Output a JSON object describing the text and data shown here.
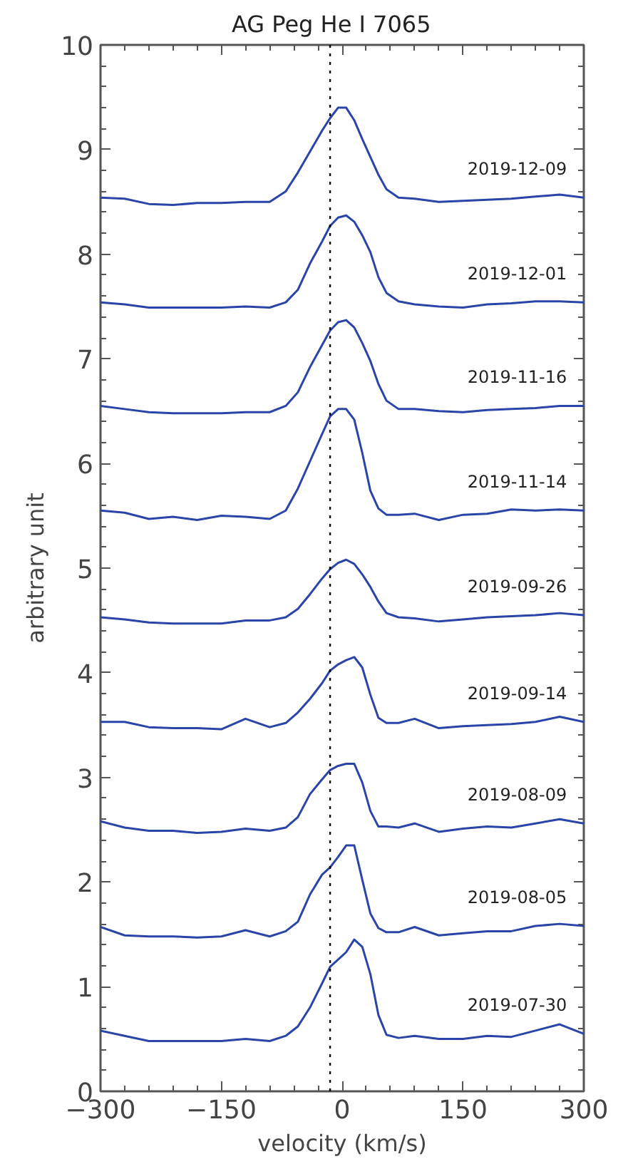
{
  "chart_data": {
    "type": "line",
    "title": "AG Peg    He I 7065",
    "xlabel": "velocity (km/s)",
    "ylabel": "arbitrary unit",
    "x": [
      -300,
      -270,
      -240,
      -210,
      -180,
      -150,
      -120,
      -90,
      -70,
      -55,
      -40,
      -25,
      -15,
      -5,
      5,
      15,
      25,
      35,
      45,
      55,
      70,
      90,
      120,
      150,
      180,
      210,
      240,
      270,
      300
    ],
    "xlim": [
      -300,
      300
    ],
    "xticks": [
      -300,
      -150,
      0,
      150,
      300
    ],
    "ylim": [
      0,
      10
    ],
    "yticks": [
      0,
      1,
      2,
      3,
      4,
      5,
      6,
      7,
      8,
      9,
      10
    ],
    "grid": false,
    "marker": "none",
    "line_style": "solid",
    "ref_lines": [
      {
        "axis": "x",
        "value": -15,
        "label": null,
        "color": "#000000",
        "line_style": "dotted"
      }
    ],
    "series": [
      {
        "name": "2019-12-09",
        "color": "#2a44a8",
        "values": [
          8.54,
          8.53,
          8.48,
          8.47,
          8.49,
          8.49,
          8.5,
          8.5,
          8.6,
          8.78,
          8.98,
          9.18,
          9.3,
          9.4,
          9.4,
          9.28,
          9.1,
          8.93,
          8.76,
          8.62,
          8.54,
          8.53,
          8.5,
          8.51,
          8.52,
          8.53,
          8.55,
          8.57,
          8.54
        ]
      },
      {
        "name": "2019-12-01",
        "color": "#2a44a8",
        "values": [
          7.54,
          7.52,
          7.49,
          7.49,
          7.49,
          7.49,
          7.5,
          7.49,
          7.54,
          7.66,
          7.91,
          8.12,
          8.27,
          8.35,
          8.37,
          8.31,
          8.18,
          8.02,
          7.78,
          7.63,
          7.55,
          7.52,
          7.5,
          7.49,
          7.52,
          7.53,
          7.55,
          7.55,
          7.54
        ]
      },
      {
        "name": "2019-11-16",
        "color": "#2a44a8",
        "values": [
          6.55,
          6.52,
          6.49,
          6.48,
          6.48,
          6.48,
          6.49,
          6.49,
          6.55,
          6.68,
          6.92,
          7.13,
          7.27,
          7.35,
          7.37,
          7.3,
          7.15,
          6.98,
          6.76,
          6.6,
          6.52,
          6.52,
          6.5,
          6.49,
          6.51,
          6.52,
          6.53,
          6.55,
          6.55
        ]
      },
      {
        "name": "2019-11-14",
        "color": "#2a44a8",
        "values": [
          5.55,
          5.53,
          5.47,
          5.49,
          5.46,
          5.5,
          5.49,
          5.47,
          5.55,
          5.76,
          6.02,
          6.28,
          6.45,
          6.52,
          6.52,
          6.42,
          6.1,
          5.74,
          5.57,
          5.51,
          5.51,
          5.52,
          5.46,
          5.51,
          5.52,
          5.56,
          5.55,
          5.56,
          5.55
        ]
      },
      {
        "name": "2019-09-26",
        "color": "#2a44a8",
        "values": [
          4.53,
          4.51,
          4.48,
          4.47,
          4.47,
          4.47,
          4.5,
          4.5,
          4.53,
          4.61,
          4.75,
          4.9,
          4.99,
          5.05,
          5.08,
          5.04,
          4.94,
          4.82,
          4.68,
          4.57,
          4.53,
          4.52,
          4.49,
          4.51,
          4.53,
          4.54,
          4.55,
          4.57,
          4.55
        ]
      },
      {
        "name": "2019-09-14",
        "color": "#2a44a8",
        "values": [
          3.53,
          3.53,
          3.48,
          3.47,
          3.47,
          3.46,
          3.56,
          3.48,
          3.52,
          3.62,
          3.75,
          3.9,
          4.02,
          4.08,
          4.12,
          4.15,
          4.05,
          3.79,
          3.57,
          3.52,
          3.52,
          3.56,
          3.47,
          3.49,
          3.5,
          3.51,
          3.53,
          3.58,
          3.53
        ]
      },
      {
        "name": "2019-08-09",
        "color": "#2a44a8",
        "values": [
          2.58,
          2.52,
          2.49,
          2.49,
          2.47,
          2.48,
          2.51,
          2.49,
          2.52,
          2.62,
          2.84,
          2.98,
          3.07,
          3.11,
          3.13,
          3.13,
          2.95,
          2.68,
          2.53,
          2.53,
          2.52,
          2.56,
          2.48,
          2.51,
          2.53,
          2.52,
          2.56,
          2.6,
          2.56
        ]
      },
      {
        "name": "2019-08-05",
        "color": "#2a44a8",
        "values": [
          1.57,
          1.49,
          1.48,
          1.48,
          1.47,
          1.48,
          1.54,
          1.48,
          1.53,
          1.62,
          1.88,
          2.07,
          2.14,
          2.24,
          2.35,
          2.35,
          2.02,
          1.7,
          1.56,
          1.52,
          1.52,
          1.57,
          1.49,
          1.51,
          1.53,
          1.53,
          1.58,
          1.6,
          1.58
        ]
      },
      {
        "name": "2019-07-30",
        "color": "#2a44a8",
        "values": [
          0.58,
          0.53,
          0.48,
          0.48,
          0.48,
          0.48,
          0.5,
          0.48,
          0.53,
          0.62,
          0.8,
          1.03,
          1.19,
          1.26,
          1.33,
          1.45,
          1.38,
          1.12,
          0.73,
          0.54,
          0.51,
          0.53,
          0.5,
          0.5,
          0.53,
          0.52,
          0.58,
          0.64,
          0.55
        ]
      }
    ]
  }
}
